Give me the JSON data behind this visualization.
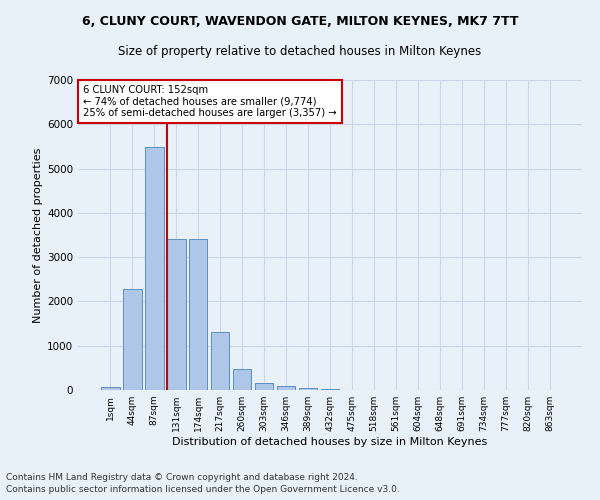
{
  "title1": "6, CLUNY COURT, WAVENDON GATE, MILTON KEYNES, MK7 7TT",
  "title2": "Size of property relative to detached houses in Milton Keynes",
  "xlabel": "Distribution of detached houses by size in Milton Keynes",
  "ylabel": "Number of detached properties",
  "categories": [
    "1sqm",
    "44sqm",
    "87sqm",
    "131sqm",
    "174sqm",
    "217sqm",
    "260sqm",
    "303sqm",
    "346sqm",
    "389sqm",
    "432sqm",
    "475sqm",
    "518sqm",
    "561sqm",
    "604sqm",
    "648sqm",
    "691sqm",
    "734sqm",
    "777sqm",
    "820sqm",
    "863sqm"
  ],
  "values": [
    75,
    2270,
    5480,
    3400,
    3400,
    1310,
    470,
    160,
    80,
    50,
    25,
    10,
    5,
    0,
    0,
    0,
    0,
    0,
    0,
    0,
    0
  ],
  "bar_color": "#aec6e8",
  "bar_edge_color": "#5a8fc2",
  "vline_x": 2.57,
  "vline_color": "#cc0000",
  "annotation_box_text": "6 CLUNY COURT: 152sqm\n← 74% of detached houses are smaller (9,774)\n25% of semi-detached houses are larger (3,357) →",
  "annotation_box_color": "#cc0000",
  "annotation_box_bg": "#ffffff",
  "ylim": [
    0,
    7000
  ],
  "yticks": [
    0,
    1000,
    2000,
    3000,
    4000,
    5000,
    6000,
    7000
  ],
  "footnote1": "Contains HM Land Registry data © Crown copyright and database right 2024.",
  "footnote2": "Contains public sector information licensed under the Open Government Licence v3.0.",
  "bg_color": "#e8f0f8",
  "grid_color": "#c8d8e8",
  "title1_fontsize": 9,
  "title2_fontsize": 8.5,
  "xlabel_fontsize": 8,
  "ylabel_fontsize": 8,
  "footnote_fontsize": 6.5
}
